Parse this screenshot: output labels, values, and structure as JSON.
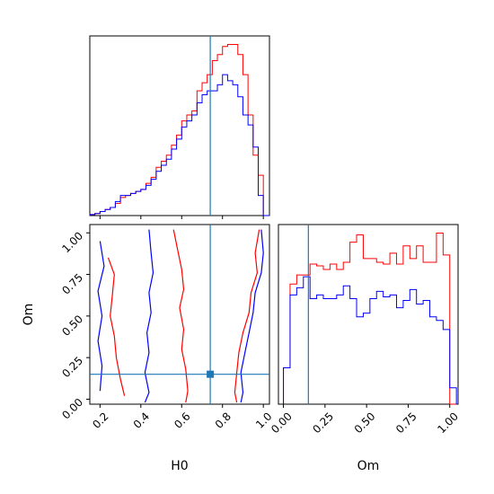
{
  "chart_data": {
    "type": "corner",
    "parameters": [
      "H0",
      "Om"
    ],
    "truth": {
      "H0": 0.74,
      "Om": 0.15
    },
    "colors": {
      "series_a": "#ff0000",
      "series_b": "#0000ff",
      "truth": "#1f77b4"
    },
    "hist_H0": {
      "xlim": [
        0.15,
        1.03
      ],
      "bin_edges": [
        0.15,
        0.175,
        0.2,
        0.225,
        0.25,
        0.275,
        0.3,
        0.325,
        0.35,
        0.375,
        0.4,
        0.425,
        0.45,
        0.475,
        0.5,
        0.525,
        0.55,
        0.575,
        0.6,
        0.625,
        0.65,
        0.675,
        0.7,
        0.725,
        0.75,
        0.775,
        0.8,
        0.825,
        0.85,
        0.875,
        0.9,
        0.925,
        0.95,
        0.975,
        1.0,
        1.03
      ],
      "series": [
        {
          "color": "#ff0000",
          "values": [
            0.5,
            1,
            2,
            3,
            4,
            6,
            9,
            10,
            11,
            12,
            13,
            16,
            19,
            24,
            27,
            30,
            35,
            40,
            47,
            50,
            52,
            62,
            66,
            70,
            77,
            80,
            84,
            85,
            85,
            80,
            70,
            50,
            30,
            20,
            0
          ]
        },
        {
          "color": "#0000ff",
          "values": [
            0.5,
            1,
            2,
            3,
            4,
            7,
            10,
            10,
            11,
            12,
            13,
            15,
            18,
            22,
            25,
            28,
            33,
            38,
            44,
            47,
            50,
            56,
            60,
            62,
            62,
            65,
            70,
            67,
            65,
            59,
            50,
            45,
            34,
            10,
            0
          ]
        }
      ]
    },
    "hist_Om": {
      "xlim": [
        -0.03,
        1.05
      ],
      "bin_edges": [
        0.0,
        0.04,
        0.08,
        0.12,
        0.16,
        0.2,
        0.24,
        0.28,
        0.32,
        0.36,
        0.4,
        0.44,
        0.48,
        0.52,
        0.56,
        0.6,
        0.64,
        0.68,
        0.72,
        0.76,
        0.8,
        0.84,
        0.88,
        0.92,
        0.96,
        1.0,
        1.04
      ],
      "series": [
        {
          "color": "#ff0000",
          "values": [
            20,
            66,
            71,
            71,
            77,
            76,
            74,
            77,
            74,
            78,
            89,
            93,
            80,
            80,
            78,
            77,
            83,
            77,
            87,
            80,
            87,
            78,
            78,
            94,
            82,
            0
          ]
        },
        {
          "color": "#0000ff",
          "values": [
            20,
            60,
            64,
            70,
            58,
            60,
            58,
            58,
            60,
            65,
            58,
            48,
            50,
            58,
            62,
            59,
            60,
            53,
            57,
            63,
            55,
            57,
            48,
            46,
            41,
            9
          ]
        }
      ]
    },
    "scatter_H0_Om": {
      "xlim": [
        0.15,
        1.03
      ],
      "ylim": [
        -0.03,
        1.05
      ],
      "xlabel": "H0",
      "ylabel": "Om",
      "contours": [
        {
          "color": "#ff0000",
          "points": [
            [
              0.56,
              1.02
            ],
            [
              0.58,
              0.9
            ],
            [
              0.6,
              0.78
            ],
            [
              0.61,
              0.66
            ],
            [
              0.59,
              0.55
            ],
            [
              0.61,
              0.42
            ],
            [
              0.6,
              0.3
            ],
            [
              0.62,
              0.18
            ],
            [
              0.63,
              0.05
            ],
            [
              0.62,
              -0.02
            ]
          ]
        },
        {
          "color": "#ff0000",
          "points": [
            [
              0.98,
              1.02
            ],
            [
              0.96,
              0.88
            ],
            [
              0.97,
              0.76
            ],
            [
              0.94,
              0.64
            ],
            [
              0.93,
              0.52
            ],
            [
              0.9,
              0.4
            ],
            [
              0.88,
              0.28
            ],
            [
              0.87,
              0.16
            ],
            [
              0.86,
              0.04
            ],
            [
              0.87,
              -0.02
            ]
          ]
        },
        {
          "color": "#ff0000",
          "points": [
            [
              0.24,
              0.85
            ],
            [
              0.27,
              0.75
            ],
            [
              0.26,
              0.62
            ],
            [
              0.25,
              0.5
            ],
            [
              0.27,
              0.38
            ],
            [
              0.28,
              0.25
            ],
            [
              0.3,
              0.12
            ],
            [
              0.32,
              0.02
            ]
          ]
        },
        {
          "color": "#0000ff",
          "points": [
            [
              0.44,
              1.02
            ],
            [
              0.45,
              0.88
            ],
            [
              0.46,
              0.76
            ],
            [
              0.44,
              0.64
            ],
            [
              0.45,
              0.52
            ],
            [
              0.43,
              0.4
            ],
            [
              0.44,
              0.28
            ],
            [
              0.42,
              0.16
            ],
            [
              0.44,
              0.04
            ],
            [
              0.42,
              -0.02
            ]
          ]
        },
        {
          "color": "#0000ff",
          "points": [
            [
              0.99,
              1.02
            ],
            [
              1.0,
              0.88
            ],
            [
              0.99,
              0.76
            ],
            [
              0.96,
              0.64
            ],
            [
              0.95,
              0.52
            ],
            [
              0.93,
              0.4
            ],
            [
              0.91,
              0.28
            ],
            [
              0.89,
              0.16
            ],
            [
              0.9,
              0.04
            ],
            [
              0.89,
              -0.02
            ]
          ]
        },
        {
          "color": "#0000ff",
          "points": [
            [
              0.2,
              0.95
            ],
            [
              0.22,
              0.8
            ],
            [
              0.19,
              0.65
            ],
            [
              0.21,
              0.5
            ],
            [
              0.19,
              0.35
            ],
            [
              0.21,
              0.2
            ],
            [
              0.2,
              0.05
            ]
          ]
        }
      ]
    },
    "axis_labels": {
      "x_left": "H0",
      "x_right": "Om",
      "y_bottom": "Om"
    },
    "ticks": {
      "H0": [
        "0.2",
        "0.4",
        "0.6",
        "0.8",
        "1.0"
      ],
      "Om": [
        "0.00",
        "0.25",
        "0.50",
        "0.75",
        "1.00"
      ]
    }
  }
}
